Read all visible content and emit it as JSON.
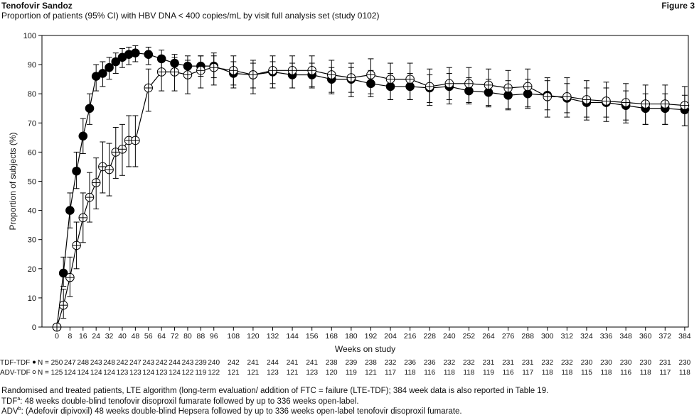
{
  "header": {
    "brand": "Tenofovir Sandoz",
    "figure": "Figure 3",
    "subtitle": "Proportion of patients (95% CI) with HBV DNA < 400 copies/mL by visit full analysis set (study 0102)"
  },
  "footnotes": {
    "line1": "Randomised and treated patients, LTE algorithm (long-term evaluation/ addition of FTC = failure (LTE-TDF); 384 week data is also reported in Table 19.",
    "line2_label": "TDF",
    "line2_sup": "a",
    "line2_text": ": 48 weeks double-blind tenofovir disoproxil fumarate followed by up to 336 weeks open-label.",
    "line3_label": "ADV",
    "line3_sup": "b",
    "line3_text": ": (Adefovir dipivoxil) 48 weeks double-blind Hepsera followed by up to 336 weeks open-label tenofovir disoproxil fumarate."
  },
  "chart_data": {
    "type": "line",
    "xlabel": "Weeks on study",
    "ylabel": "Proportion of subjects (%)",
    "xticks": [
      0,
      8,
      16,
      24,
      32,
      40,
      48,
      56,
      64,
      72,
      80,
      88,
      96,
      108,
      120,
      132,
      144,
      156,
      168,
      180,
      192,
      204,
      216,
      228,
      240,
      252,
      264,
      276,
      288,
      300,
      312,
      324,
      336,
      348,
      360,
      372,
      384
    ],
    "yticks": [
      0,
      10,
      20,
      30,
      40,
      50,
      60,
      70,
      80,
      90,
      100
    ],
    "ylim": [
      0,
      100
    ],
    "xlim": [
      -8,
      390
    ],
    "grid": false,
    "legend": "none",
    "series": [
      {
        "name": "TDF-TDF",
        "marker": "filled-circle",
        "color": "#000000",
        "n_label": "N =",
        "n": [
          250,
          247,
          248,
          243,
          248,
          242,
          247,
          243,
          242,
          244,
          243,
          239,
          240,
          242,
          241,
          244,
          241,
          241,
          238,
          239,
          238,
          232,
          236,
          236,
          232,
          232,
          231,
          231,
          231,
          232,
          232,
          230,
          230,
          230,
          230,
          231,
          230
        ],
        "n_weeks": [
          0,
          8,
          16,
          24,
          32,
          40,
          48,
          56,
          64,
          72,
          80,
          88,
          96,
          108,
          120,
          132,
          144,
          156,
          168,
          180,
          192,
          204,
          216,
          228,
          240,
          252,
          264,
          276,
          288,
          300,
          312,
          324,
          336,
          348,
          360,
          372,
          384
        ],
        "points": [
          {
            "x": 0,
            "y": 0,
            "lo": 0,
            "hi": 0
          },
          {
            "x": 4,
            "y": 18.5,
            "lo": 14,
            "hi": 24
          },
          {
            "x": 8,
            "y": 40,
            "lo": 34,
            "hi": 46
          },
          {
            "x": 12,
            "y": 53.5,
            "lo": 47.5,
            "hi": 60
          },
          {
            "x": 16,
            "y": 65.5,
            "lo": 59.5,
            "hi": 71.5
          },
          {
            "x": 20,
            "y": 75,
            "lo": 69.5,
            "hi": 80
          },
          {
            "x": 24,
            "y": 86,
            "lo": 81,
            "hi": 90
          },
          {
            "x": 28,
            "y": 87,
            "lo": 82.5,
            "hi": 91
          },
          {
            "x": 32,
            "y": 89,
            "lo": 85,
            "hi": 92.5
          },
          {
            "x": 36,
            "y": 91,
            "lo": 87,
            "hi": 94
          },
          {
            "x": 40,
            "y": 92.5,
            "lo": 89,
            "hi": 95.5
          },
          {
            "x": 44,
            "y": 93.5,
            "lo": 90,
            "hi": 96
          },
          {
            "x": 48,
            "y": 94,
            "lo": 91,
            "hi": 96.5
          },
          {
            "x": 56,
            "y": 93.5,
            "lo": 90,
            "hi": 96
          },
          {
            "x": 64,
            "y": 92,
            "lo": 88.5,
            "hi": 95
          },
          {
            "x": 72,
            "y": 90.5,
            "lo": 87,
            "hi": 93.5
          },
          {
            "x": 80,
            "y": 89.5,
            "lo": 86,
            "hi": 93
          },
          {
            "x": 88,
            "y": 89.5,
            "lo": 86,
            "hi": 93
          },
          {
            "x": 96,
            "y": 89.5,
            "lo": 85.5,
            "hi": 93
          },
          {
            "x": 108,
            "y": 87,
            "lo": 83,
            "hi": 91
          },
          {
            "x": 120,
            "y": 86.5,
            "lo": 82,
            "hi": 90.5
          },
          {
            "x": 132,
            "y": 87.5,
            "lo": 83.5,
            "hi": 91
          },
          {
            "x": 144,
            "y": 86.5,
            "lo": 82,
            "hi": 90.5
          },
          {
            "x": 156,
            "y": 86.5,
            "lo": 82.5,
            "hi": 90.5
          },
          {
            "x": 168,
            "y": 85,
            "lo": 80.5,
            "hi": 89
          },
          {
            "x": 180,
            "y": 85,
            "lo": 80.5,
            "hi": 89
          },
          {
            "x": 192,
            "y": 83.5,
            "lo": 79,
            "hi": 88
          },
          {
            "x": 204,
            "y": 82.5,
            "lo": 78,
            "hi": 87
          },
          {
            "x": 216,
            "y": 82.5,
            "lo": 78,
            "hi": 87
          },
          {
            "x": 228,
            "y": 82,
            "lo": 77,
            "hi": 86.5
          },
          {
            "x": 240,
            "y": 82.5,
            "lo": 78,
            "hi": 87
          },
          {
            "x": 252,
            "y": 81,
            "lo": 76.5,
            "hi": 85.5
          },
          {
            "x": 264,
            "y": 80.5,
            "lo": 75.5,
            "hi": 85
          },
          {
            "x": 276,
            "y": 79.5,
            "lo": 74.5,
            "hi": 84.5
          },
          {
            "x": 288,
            "y": 80,
            "lo": 75,
            "hi": 85
          },
          {
            "x": 300,
            "y": 79.5,
            "lo": 74.5,
            "hi": 84.5
          },
          {
            "x": 312,
            "y": 78.5,
            "lo": 73.5,
            "hi": 83.5
          },
          {
            "x": 324,
            "y": 77,
            "lo": 72,
            "hi": 82
          },
          {
            "x": 336,
            "y": 77,
            "lo": 72,
            "hi": 82
          },
          {
            "x": 348,
            "y": 76,
            "lo": 71,
            "hi": 81
          },
          {
            "x": 360,
            "y": 75,
            "lo": 69.5,
            "hi": 80
          },
          {
            "x": 372,
            "y": 75,
            "lo": 69.5,
            "hi": 80
          },
          {
            "x": 384,
            "y": 74.5,
            "lo": 69,
            "hi": 79.5
          }
        ]
      },
      {
        "name": "ADV-TDF",
        "marker": "open-circle-cross",
        "color": "#000000",
        "n_label": "N =",
        "n": [
          125,
          124,
          124,
          124,
          124,
          123,
          123,
          124,
          123,
          124,
          122,
          119,
          122,
          121,
          121,
          123,
          121,
          123,
          120,
          119,
          121,
          117,
          118,
          116,
          118,
          118,
          119,
          116,
          117,
          118,
          118,
          115,
          118,
          116,
          118,
          117,
          118
        ],
        "n_weeks": [
          0,
          8,
          16,
          24,
          32,
          40,
          48,
          56,
          64,
          72,
          80,
          88,
          96,
          108,
          120,
          132,
          144,
          156,
          168,
          180,
          192,
          204,
          216,
          228,
          240,
          252,
          264,
          276,
          288,
          300,
          312,
          324,
          336,
          348,
          360,
          372,
          384
        ],
        "points": [
          {
            "x": 0,
            "y": 0,
            "lo": 0,
            "hi": 0
          },
          {
            "x": 4,
            "y": 7.5,
            "lo": 3,
            "hi": 13
          },
          {
            "x": 8,
            "y": 17,
            "lo": 10.5,
            "hi": 24
          },
          {
            "x": 12,
            "y": 28,
            "lo": 20,
            "hi": 36
          },
          {
            "x": 16,
            "y": 37.5,
            "lo": 29,
            "hi": 46
          },
          {
            "x": 20,
            "y": 44.5,
            "lo": 36,
            "hi": 53
          },
          {
            "x": 24,
            "y": 49.5,
            "lo": 40.5,
            "hi": 58
          },
          {
            "x": 28,
            "y": 55,
            "lo": 46,
            "hi": 63.5
          },
          {
            "x": 32,
            "y": 54,
            "lo": 45,
            "hi": 63
          },
          {
            "x": 36,
            "y": 60,
            "lo": 51,
            "hi": 68.5
          },
          {
            "x": 40,
            "y": 61,
            "lo": 52,
            "hi": 69.5
          },
          {
            "x": 44,
            "y": 64,
            "lo": 55,
            "hi": 72.5
          },
          {
            "x": 48,
            "y": 64,
            "lo": 55,
            "hi": 72.5
          },
          {
            "x": 56,
            "y": 82,
            "lo": 74,
            "hi": 88.5
          },
          {
            "x": 64,
            "y": 87.5,
            "lo": 81,
            "hi": 92.5
          },
          {
            "x": 72,
            "y": 87.5,
            "lo": 81,
            "hi": 92.5
          },
          {
            "x": 80,
            "y": 86.5,
            "lo": 80,
            "hi": 91.5
          },
          {
            "x": 88,
            "y": 88,
            "lo": 82,
            "hi": 93
          },
          {
            "x": 96,
            "y": 89,
            "lo": 83,
            "hi": 94
          },
          {
            "x": 108,
            "y": 88,
            "lo": 82,
            "hi": 93
          },
          {
            "x": 120,
            "y": 86.5,
            "lo": 80,
            "hi": 91.5
          },
          {
            "x": 132,
            "y": 88,
            "lo": 82,
            "hi": 93
          },
          {
            "x": 144,
            "y": 88,
            "lo": 82,
            "hi": 93
          },
          {
            "x": 156,
            "y": 88,
            "lo": 82,
            "hi": 93
          },
          {
            "x": 168,
            "y": 86.5,
            "lo": 80,
            "hi": 91.5
          },
          {
            "x": 180,
            "y": 85.5,
            "lo": 79,
            "hi": 90.5
          },
          {
            "x": 192,
            "y": 86.5,
            "lo": 80,
            "hi": 92
          },
          {
            "x": 204,
            "y": 85,
            "lo": 78,
            "hi": 90.5
          },
          {
            "x": 216,
            "y": 85,
            "lo": 78,
            "hi": 90.5
          },
          {
            "x": 228,
            "y": 82.5,
            "lo": 76,
            "hi": 88.5
          },
          {
            "x": 240,
            "y": 83.5,
            "lo": 76.5,
            "hi": 89
          },
          {
            "x": 252,
            "y": 83.5,
            "lo": 77,
            "hi": 89
          },
          {
            "x": 264,
            "y": 83,
            "lo": 76,
            "hi": 88.5
          },
          {
            "x": 276,
            "y": 82,
            "lo": 75,
            "hi": 88
          },
          {
            "x": 288,
            "y": 82.5,
            "lo": 75.5,
            "hi": 88.5
          },
          {
            "x": 300,
            "y": 79,
            "lo": 72,
            "hi": 85.5
          },
          {
            "x": 312,
            "y": 79,
            "lo": 72,
            "hi": 85.5
          },
          {
            "x": 324,
            "y": 78,
            "lo": 71,
            "hi": 84.5
          },
          {
            "x": 336,
            "y": 77.5,
            "lo": 70.5,
            "hi": 84
          },
          {
            "x": 348,
            "y": 77,
            "lo": 70,
            "hi": 83.5
          },
          {
            "x": 360,
            "y": 76.5,
            "lo": 69.5,
            "hi": 83
          },
          {
            "x": 372,
            "y": 76.5,
            "lo": 69.5,
            "hi": 83
          },
          {
            "x": 384,
            "y": 76,
            "lo": 69,
            "hi": 82.5
          }
        ]
      }
    ]
  }
}
